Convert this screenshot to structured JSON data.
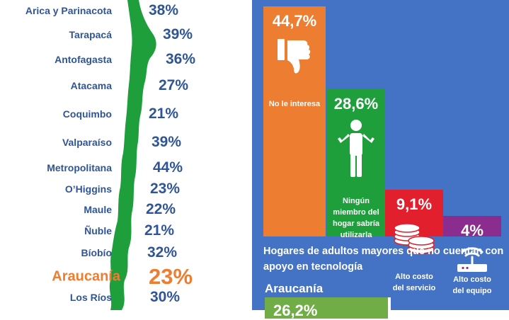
{
  "chart_data": [
    {
      "type": "bar",
      "categories": [
        "Arica y Parinacota",
        "Tarapacá",
        "Antofagasta",
        "Atacama",
        "Coquimbo",
        "Valparaíso",
        "Metropolitana",
        "O’Higgins",
        "Maule",
        "Ñuble",
        "Bíobío",
        "Araucanía",
        "Los Ríos"
      ],
      "value_labels": [
        "38%",
        "39%",
        "36%",
        "27%",
        "21%",
        "39%",
        "44%",
        "23%",
        "22%",
        "21%",
        "32%",
        "23%",
        "30%"
      ],
      "values": [
        38,
        39,
        36,
        27,
        21,
        39,
        44,
        23,
        22,
        21,
        32,
        23,
        30
      ],
      "highlight": "Araucanía",
      "colors": {
        "text": "#2f5597",
        "highlight": "#ed7d31",
        "map": "#1f9e3c"
      }
    },
    {
      "type": "bar",
      "title": "Hogares de adultos mayores que no cuentan con apoyo en tecnología",
      "categories": [
        "No le interesa",
        "Ningún miembro del hogar sabría utilizarla",
        "Alto costo del servicio",
        "Alto costo del equipo"
      ],
      "value_labels": [
        "44,7%",
        "28,6%",
        "9,1%",
        "4%"
      ],
      "values": [
        44.7,
        28.6,
        9.1,
        4
      ],
      "colors": [
        "#ed7d31",
        "#1f9e3c",
        "#e21f2c",
        "#8a2d8e"
      ],
      "icons": [
        "thumbs-down-icon",
        "shrugging-person-icon",
        "coin-stack-icon",
        "wifi-router-icon"
      ]
    }
  ],
  "caption": "Hogares de adultos mayores que no cuentan con apoyo en tecnología",
  "region_box": {
    "name": "Araucanía",
    "value_text": "26,2%"
  },
  "panel_color": "#4472c4"
}
